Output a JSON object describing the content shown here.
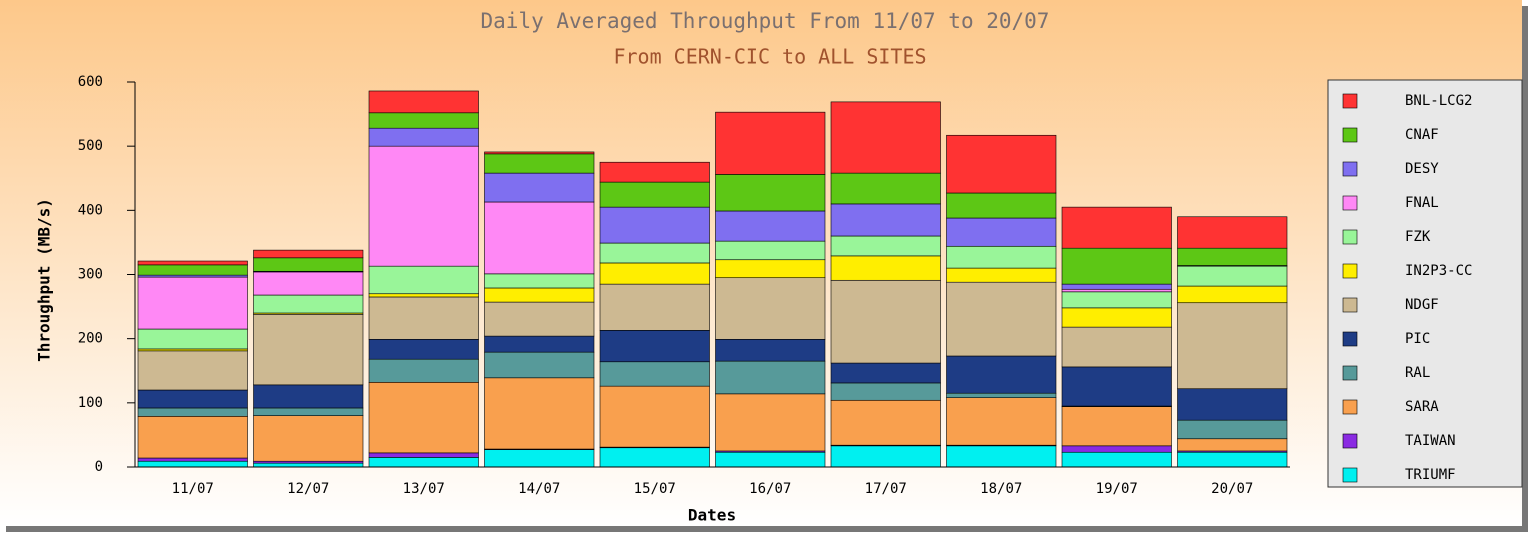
{
  "chart_data": {
    "type": "stacked_bar",
    "title": "Daily Averaged Throughput From 11/07 to 20/07",
    "subtitle": "From CERN-CIC to ALL SITES",
    "x_label": "Dates",
    "y_label": "Throughput (MB/s)",
    "categories": [
      "11/07",
      "12/07",
      "13/07",
      "14/07",
      "15/07",
      "16/07",
      "17/07",
      "18/07",
      "19/07",
      "20/07"
    ],
    "ylim": [
      0,
      600
    ],
    "yticks": [
      0,
      100,
      200,
      300,
      400,
      500,
      600
    ],
    "legend": "right",
    "series": [
      {
        "name": "TRIUMF",
        "color": "#00f0f0",
        "values": [
          9,
          6,
          15,
          27,
          30,
          23,
          33,
          33,
          23,
          23
        ]
      },
      {
        "name": "TAIWAN",
        "color": "#8a2be2",
        "values": [
          5,
          3,
          7,
          1,
          1,
          2,
          1,
          1,
          10,
          2
        ]
      },
      {
        "name": "SARA",
        "color": "#f9a04e",
        "values": [
          65,
          71,
          110,
          111,
          95,
          89,
          70,
          74,
          61,
          19
        ]
      },
      {
        "name": "RAL",
        "color": "#579a9a",
        "values": [
          13,
          12,
          36,
          40,
          38,
          51,
          27,
          7,
          1,
          29
        ]
      },
      {
        "name": "PIC",
        "color": "#1e3c85",
        "values": [
          28,
          36,
          31,
          25,
          49,
          34,
          31,
          58,
          61,
          49
        ]
      },
      {
        "name": "NDGF",
        "color": "#cdb992",
        "values": [
          61,
          110,
          66,
          53,
          72,
          96,
          129,
          115,
          62,
          134
        ]
      },
      {
        "name": "IN2P3-CC",
        "color": "#ffee00",
        "values": [
          3,
          2,
          5,
          22,
          33,
          28,
          38,
          22,
          30,
          26
        ]
      },
      {
        "name": "FZK",
        "color": "#99f599",
        "values": [
          31,
          28,
          43,
          22,
          31,
          29,
          31,
          34,
          25,
          31
        ]
      },
      {
        "name": "FNAL",
        "color": "#ff88f5",
        "values": [
          81,
          36,
          187,
          112,
          0,
          0,
          0,
          0,
          4,
          0
        ]
      },
      {
        "name": "DESY",
        "color": "#7f6ff0",
        "values": [
          3,
          1,
          28,
          45,
          56,
          47,
          50,
          44,
          8,
          1
        ]
      },
      {
        "name": "CNAF",
        "color": "#5dc715",
        "values": [
          16,
          21,
          24,
          30,
          39,
          57,
          48,
          39,
          56,
          27
        ]
      },
      {
        "name": "BNL-LCG2",
        "color": "#ff3333",
        "values": [
          6,
          12,
          34,
          3,
          31,
          97,
          111,
          90,
          64,
          49
        ]
      }
    ]
  }
}
